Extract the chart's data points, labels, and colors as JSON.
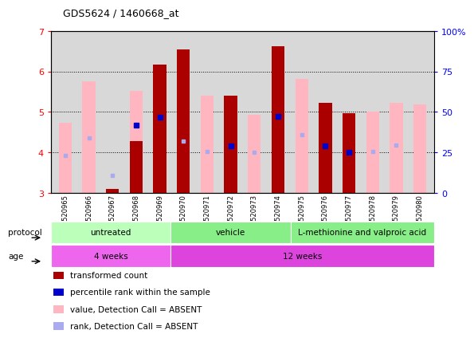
{
  "title": "GDS5624 / 1460668_at",
  "samples": [
    "GSM1520965",
    "GSM1520966",
    "GSM1520967",
    "GSM1520968",
    "GSM1520969",
    "GSM1520970",
    "GSM1520971",
    "GSM1520972",
    "GSM1520973",
    "GSM1520974",
    "GSM1520975",
    "GSM1520976",
    "GSM1520977",
    "GSM1520978",
    "GSM1520979",
    "GSM1520980"
  ],
  "red_bar_bottom": 3.0,
  "red_values": [
    null,
    null,
    3.1,
    4.28,
    6.17,
    6.55,
    null,
    5.4,
    null,
    6.62,
    null,
    5.23,
    4.97,
    null,
    null,
    null
  ],
  "pink_values": [
    4.73,
    5.75,
    null,
    5.52,
    null,
    null,
    5.41,
    null,
    4.93,
    null,
    5.82,
    null,
    null,
    5.0,
    5.23,
    5.18
  ],
  "blue_values": [
    null,
    null,
    null,
    4.67,
    4.87,
    null,
    null,
    4.17,
    null,
    4.88,
    null,
    4.17,
    4.01,
    null,
    null,
    null
  ],
  "light_blue_values": [
    3.93,
    4.35,
    3.43,
    null,
    null,
    4.28,
    4.02,
    null,
    4.01,
    null,
    4.43,
    null,
    null,
    4.02,
    4.18,
    null
  ],
  "ylim": [
    3.0,
    7.0
  ],
  "yticks": [
    3,
    4,
    5,
    6,
    7
  ],
  "right_yticks": [
    0,
    25,
    50,
    75,
    100
  ],
  "right_ylabels": [
    "0",
    "25",
    "50",
    "75",
    "100%"
  ],
  "red_color": "#AA0000",
  "pink_color": "#FFB6C1",
  "blue_color": "#0000CC",
  "light_blue_color": "#AAAAEE",
  "bar_width": 0.55,
  "bg_color": "#D8D8D8",
  "proto_groups": [
    {
      "label": "untreated",
      "start": 0,
      "end": 5,
      "color": "#BBFFBB"
    },
    {
      "label": "vehicle",
      "start": 5,
      "end": 10,
      "color": "#88EE88"
    },
    {
      "label": "L-methionine and valproic acid",
      "start": 10,
      "end": 16,
      "color": "#88EE88"
    }
  ],
  "age_groups": [
    {
      "label": "4 weeks",
      "start": 0,
      "end": 5,
      "color": "#EE66EE"
    },
    {
      "label": "12 weeks",
      "start": 5,
      "end": 16,
      "color": "#DD44DD"
    }
  ],
  "legend_items": [
    {
      "color": "#AA0000",
      "label": "transformed count"
    },
    {
      "color": "#0000CC",
      "label": "percentile rank within the sample"
    },
    {
      "color": "#FFB6C1",
      "label": "value, Detection Call = ABSENT"
    },
    {
      "color": "#AAAAEE",
      "label": "rank, Detection Call = ABSENT"
    }
  ]
}
